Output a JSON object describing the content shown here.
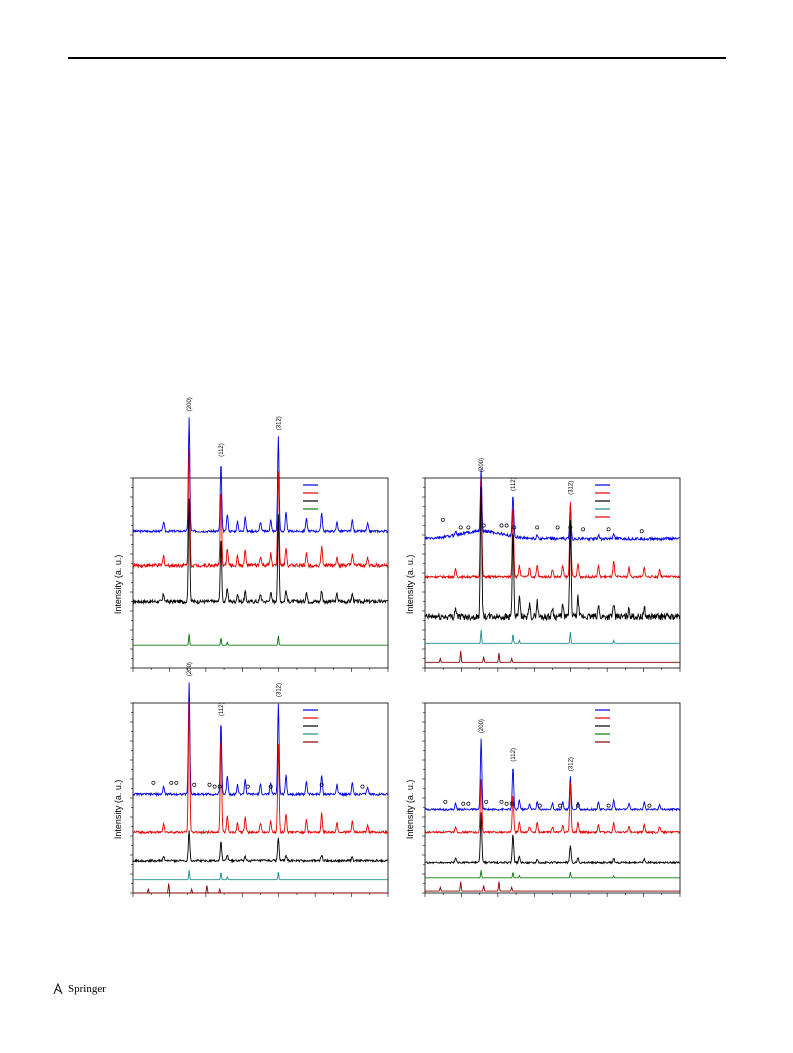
{
  "footer": {
    "publisher": "Springer"
  },
  "colors": {
    "blue": "#0000e6",
    "red": "#e60000",
    "black": "#000000",
    "green": "#0a7a0a",
    "teal": "#1a9090",
    "maroon": "#8b0000"
  },
  "chart_data": [
    {
      "type": "line",
      "ylabel": "Intensity (a. u.)",
      "peak_labels": [
        "(200)",
        "(112)",
        "(312)"
      ],
      "peak_x": [
        0.22,
        0.345,
        0.57
      ],
      "series": [
        {
          "color": "blue",
          "offset": 0.72,
          "noise": 0.006,
          "peaks": [
            [
              0.12,
              0.05
            ],
            [
              0.22,
              0.6
            ],
            [
              0.345,
              0.36
            ],
            [
              0.37,
              0.09
            ],
            [
              0.41,
              0.05
            ],
            [
              0.44,
              0.08
            ],
            [
              0.5,
              0.05
            ],
            [
              0.54,
              0.06
            ],
            [
              0.57,
              0.5
            ],
            [
              0.6,
              0.1
            ],
            [
              0.68,
              0.07
            ],
            [
              0.74,
              0.1
            ],
            [
              0.8,
              0.05
            ],
            [
              0.86,
              0.06
            ],
            [
              0.92,
              0.04
            ]
          ]
        },
        {
          "color": "red",
          "offset": 0.54,
          "noise": 0.01,
          "peaks": [
            [
              0.12,
              0.05
            ],
            [
              0.22,
              0.62
            ],
            [
              0.345,
              0.39
            ],
            [
              0.37,
              0.09
            ],
            [
              0.41,
              0.05
            ],
            [
              0.44,
              0.08
            ],
            [
              0.5,
              0.05
            ],
            [
              0.54,
              0.06
            ],
            [
              0.57,
              0.5
            ],
            [
              0.6,
              0.1
            ],
            [
              0.68,
              0.07
            ],
            [
              0.74,
              0.1
            ],
            [
              0.8,
              0.05
            ],
            [
              0.86,
              0.06
            ],
            [
              0.92,
              0.04
            ]
          ]
        },
        {
          "color": "black",
          "offset": 0.35,
          "noise": 0.01,
          "peaks": [
            [
              0.12,
              0.04
            ],
            [
              0.22,
              0.54
            ],
            [
              0.345,
              0.33
            ],
            [
              0.37,
              0.07
            ],
            [
              0.41,
              0.04
            ],
            [
              0.44,
              0.05
            ],
            [
              0.5,
              0.04
            ],
            [
              0.54,
              0.05
            ],
            [
              0.57,
              0.45
            ],
            [
              0.6,
              0.06
            ],
            [
              0.68,
              0.05
            ],
            [
              0.74,
              0.06
            ],
            [
              0.8,
              0.04
            ],
            [
              0.86,
              0.04
            ]
          ]
        },
        {
          "color": "green",
          "offset": 0.12,
          "noise": 0,
          "sticks": true,
          "peaks": [
            [
              0.22,
              0.06
            ],
            [
              0.345,
              0.04
            ],
            [
              0.57,
              0.05
            ],
            [
              0.37,
              0.015
            ]
          ]
        }
      ],
      "legend_colors": [
        "blue",
        "red",
        "black",
        "green"
      ],
      "circles": []
    },
    {
      "type": "line",
      "ylabel": "Intensity (a. u.)",
      "peak_labels": [
        "(200)",
        "(112)",
        "(312)"
      ],
      "peak_x": [
        0.22,
        0.345,
        0.57
      ],
      "series": [
        {
          "color": "blue",
          "offset": 0.68,
          "noise": 0.008,
          "hump": 0.04,
          "peaks": [
            [
              0.22,
              0.32
            ],
            [
              0.345,
              0.22
            ],
            [
              0.57,
              0.18
            ],
            [
              0.12,
              0.02
            ],
            [
              0.44,
              0.02
            ],
            [
              0.68,
              0.02
            ],
            [
              0.74,
              0.03
            ]
          ]
        },
        {
          "color": "red",
          "offset": 0.48,
          "noise": 0.006,
          "peaks": [
            [
              0.12,
              0.04
            ],
            [
              0.22,
              0.52
            ],
            [
              0.345,
              0.38
            ],
            [
              0.37,
              0.06
            ],
            [
              0.41,
              0.05
            ],
            [
              0.44,
              0.06
            ],
            [
              0.5,
              0.04
            ],
            [
              0.54,
              0.06
            ],
            [
              0.57,
              0.4
            ],
            [
              0.6,
              0.07
            ],
            [
              0.68,
              0.06
            ],
            [
              0.74,
              0.08
            ],
            [
              0.8,
              0.05
            ],
            [
              0.86,
              0.05
            ],
            [
              0.92,
              0.04
            ]
          ]
        },
        {
          "color": "black",
          "offset": 0.27,
          "noise": 0.018,
          "peaks": [
            [
              0.12,
              0.05
            ],
            [
              0.22,
              0.7
            ],
            [
              0.345,
              0.46
            ],
            [
              0.37,
              0.1
            ],
            [
              0.41,
              0.06
            ],
            [
              0.44,
              0.08
            ],
            [
              0.5,
              0.05
            ],
            [
              0.54,
              0.06
            ],
            [
              0.57,
              0.5
            ],
            [
              0.6,
              0.1
            ],
            [
              0.68,
              0.06
            ],
            [
              0.74,
              0.07
            ],
            [
              0.8,
              0.04
            ],
            [
              0.86,
              0.05
            ]
          ]
        },
        {
          "color": "teal",
          "offset": 0.13,
          "noise": 0,
          "sticks": true,
          "peaks": [
            [
              0.22,
              0.07
            ],
            [
              0.345,
              0.05
            ],
            [
              0.57,
              0.06
            ],
            [
              0.37,
              0.015
            ],
            [
              0.74,
              0.015
            ]
          ]
        },
        {
          "color": "maroon",
          "offset": 0.03,
          "noise": 0,
          "sticks": true,
          "peaks": [
            [
              0.06,
              0.02
            ],
            [
              0.14,
              0.06
            ],
            [
              0.23,
              0.03
            ],
            [
              0.29,
              0.05
            ],
            [
              0.34,
              0.02
            ]
          ]
        }
      ],
      "legend_colors": [
        "blue",
        "red",
        "black",
        "teal",
        "red"
      ],
      "circles": [
        [
          0.07,
          0.78
        ],
        [
          0.14,
          0.74
        ],
        [
          0.17,
          0.74
        ],
        [
          0.23,
          0.75
        ],
        [
          0.3,
          0.75
        ],
        [
          0.32,
          0.75
        ],
        [
          0.35,
          0.74
        ],
        [
          0.44,
          0.74
        ],
        [
          0.52,
          0.74
        ],
        [
          0.57,
          0.74
        ],
        [
          0.62,
          0.73
        ],
        [
          0.72,
          0.73
        ],
        [
          0.85,
          0.72
        ]
      ]
    },
    {
      "type": "line",
      "ylabel": "Intensity (a. u.)",
      "peak_labels": [
        "(200)",
        "(112)",
        "(312)"
      ],
      "peak_x": [
        0.22,
        0.345,
        0.57
      ],
      "series": [
        {
          "color": "blue",
          "offset": 0.52,
          "noise": 0.006,
          "peaks": [
            [
              0.12,
              0.04
            ],
            [
              0.22,
              0.59
            ],
            [
              0.345,
              0.38
            ],
            [
              0.37,
              0.1
            ],
            [
              0.41,
              0.05
            ],
            [
              0.44,
              0.08
            ],
            [
              0.5,
              0.05
            ],
            [
              0.54,
              0.06
            ],
            [
              0.57,
              0.48
            ],
            [
              0.6,
              0.1
            ],
            [
              0.68,
              0.07
            ],
            [
              0.74,
              0.1
            ],
            [
              0.8,
              0.05
            ],
            [
              0.86,
              0.06
            ],
            [
              0.92,
              0.04
            ]
          ]
        },
        {
          "color": "red",
          "offset": 0.32,
          "noise": 0.006,
          "peaks": [
            [
              0.12,
              0.05
            ],
            [
              0.22,
              0.68
            ],
            [
              0.345,
              0.5
            ],
            [
              0.37,
              0.09
            ],
            [
              0.41,
              0.05
            ],
            [
              0.44,
              0.08
            ],
            [
              0.5,
              0.05
            ],
            [
              0.54,
              0.06
            ],
            [
              0.57,
              0.46
            ],
            [
              0.6,
              0.1
            ],
            [
              0.68,
              0.07
            ],
            [
              0.74,
              0.1
            ],
            [
              0.8,
              0.05
            ],
            [
              0.86,
              0.06
            ],
            [
              0.92,
              0.04
            ]
          ]
        },
        {
          "color": "black",
          "offset": 0.17,
          "noise": 0.006,
          "peaks": [
            [
              0.12,
              0.02
            ],
            [
              0.22,
              0.16
            ],
            [
              0.345,
              0.1
            ],
            [
              0.37,
              0.03
            ],
            [
              0.44,
              0.02
            ],
            [
              0.57,
              0.12
            ],
            [
              0.6,
              0.03
            ],
            [
              0.74,
              0.03
            ],
            [
              0.86,
              0.02
            ]
          ]
        },
        {
          "color": "teal",
          "offset": 0.07,
          "noise": 0,
          "sticks": true,
          "peaks": [
            [
              0.22,
              0.05
            ],
            [
              0.345,
              0.04
            ],
            [
              0.57,
              0.04
            ],
            [
              0.37,
              0.015
            ]
          ]
        },
        {
          "color": "maroon",
          "offset": 0.0,
          "noise": 0,
          "sticks": true,
          "peaks": [
            [
              0.06,
              0.02
            ],
            [
              0.14,
              0.05
            ],
            [
              0.23,
              0.02
            ],
            [
              0.29,
              0.04
            ],
            [
              0.34,
              0.02
            ]
          ]
        }
      ],
      "legend_colors": [
        "blue",
        "red",
        "black",
        "teal",
        "maroon"
      ],
      "circles": [
        [
          0.08,
          0.58
        ],
        [
          0.15,
          0.58
        ],
        [
          0.17,
          0.58
        ],
        [
          0.24,
          0.57
        ],
        [
          0.3,
          0.57
        ],
        [
          0.32,
          0.56
        ],
        [
          0.34,
          0.56
        ],
        [
          0.45,
          0.56
        ],
        [
          0.54,
          0.56
        ],
        [
          0.74,
          0.57
        ],
        [
          0.9,
          0.56
        ]
      ]
    },
    {
      "type": "line",
      "ylabel": "Intensity (a. u.)",
      "peak_labels": [
        "(200)",
        "(112)",
        "(312)"
      ],
      "peak_x": [
        0.22,
        0.345,
        0.57
      ],
      "series": [
        {
          "color": "blue",
          "offset": 0.44,
          "noise": 0.005,
          "peaks": [
            [
              0.12,
              0.03
            ],
            [
              0.22,
              0.37
            ],
            [
              0.345,
              0.22
            ],
            [
              0.37,
              0.05
            ],
            [
              0.41,
              0.03
            ],
            [
              0.44,
              0.04
            ],
            [
              0.5,
              0.03
            ],
            [
              0.54,
              0.04
            ],
            [
              0.57,
              0.17
            ],
            [
              0.6,
              0.04
            ],
            [
              0.68,
              0.04
            ],
            [
              0.74,
              0.05
            ],
            [
              0.8,
              0.03
            ],
            [
              0.86,
              0.04
            ],
            [
              0.92,
              0.03
            ]
          ]
        },
        {
          "color": "red",
          "offset": 0.32,
          "noise": 0.005,
          "peaks": [
            [
              0.12,
              0.03
            ],
            [
              0.22,
              0.28
            ],
            [
              0.345,
              0.2
            ],
            [
              0.37,
              0.05
            ],
            [
              0.41,
              0.03
            ],
            [
              0.44,
              0.05
            ],
            [
              0.5,
              0.03
            ],
            [
              0.54,
              0.04
            ],
            [
              0.57,
              0.26
            ],
            [
              0.6,
              0.05
            ],
            [
              0.68,
              0.04
            ],
            [
              0.74,
              0.05
            ],
            [
              0.8,
              0.03
            ],
            [
              0.86,
              0.04
            ],
            [
              0.92,
              0.03
            ]
          ]
        },
        {
          "color": "black",
          "offset": 0.16,
          "noise": 0.005,
          "peaks": [
            [
              0.12,
              0.02
            ],
            [
              0.22,
              0.26
            ],
            [
              0.345,
              0.15
            ],
            [
              0.37,
              0.03
            ],
            [
              0.44,
              0.02
            ],
            [
              0.57,
              0.09
            ],
            [
              0.6,
              0.03
            ],
            [
              0.74,
              0.02
            ],
            [
              0.86,
              0.02
            ]
          ]
        },
        {
          "color": "green",
          "offset": 0.08,
          "noise": 0,
          "sticks": true,
          "peaks": [
            [
              0.22,
              0.04
            ],
            [
              0.345,
              0.03
            ],
            [
              0.57,
              0.03
            ],
            [
              0.37,
              0.012
            ],
            [
              0.74,
              0.01
            ]
          ]
        },
        {
          "color": "maroon",
          "offset": 0.01,
          "noise": 0,
          "sticks": true,
          "peaks": [
            [
              0.06,
              0.02
            ],
            [
              0.14,
              0.05
            ],
            [
              0.23,
              0.03
            ],
            [
              0.29,
              0.05
            ],
            [
              0.34,
              0.02
            ]
          ]
        }
      ],
      "legend_colors": [
        "blue",
        "red",
        "black",
        "green",
        "maroon"
      ],
      "circles": [
        [
          0.08,
          0.48
        ],
        [
          0.15,
          0.47
        ],
        [
          0.17,
          0.47
        ],
        [
          0.24,
          0.48
        ],
        [
          0.3,
          0.48
        ],
        [
          0.32,
          0.47
        ],
        [
          0.34,
          0.47
        ],
        [
          0.45,
          0.46
        ],
        [
          0.53,
          0.46
        ],
        [
          0.6,
          0.46
        ],
        [
          0.72,
          0.46
        ],
        [
          0.88,
          0.46
        ]
      ]
    }
  ]
}
